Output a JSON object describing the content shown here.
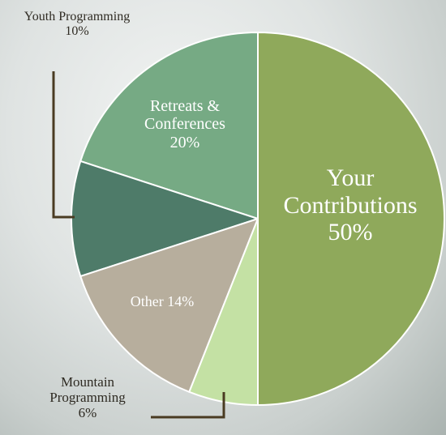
{
  "chart_data": {
    "type": "pie",
    "categories": [
      "Your Contributions",
      "Mountain Programming",
      "Other",
      "Youth Programming",
      "Retreats & Conferences"
    ],
    "values": [
      50,
      6,
      14,
      10,
      20
    ],
    "value_labels": [
      "50%",
      "6%",
      "14%",
      "10%",
      "20%"
    ],
    "colors": [
      "#8fa95b",
      "#c4e1a4",
      "#b7ae9d",
      "#4e7b69",
      "#76aa84"
    ]
  }
}
